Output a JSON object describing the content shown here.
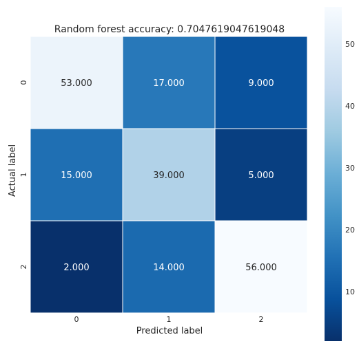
{
  "chart_data": {
    "type": "heatmap",
    "title": "Random forest accuracy: 0.7047619047619048",
    "xlabel": "Predicted label",
    "ylabel": "Actual label",
    "x_categories": [
      "0",
      "1",
      "2"
    ],
    "y_categories": [
      "0",
      "1",
      "2"
    ],
    "values": [
      [
        53,
        17,
        9
      ],
      [
        15,
        39,
        5
      ],
      [
        2,
        14,
        56
      ]
    ],
    "cell_labels": [
      [
        "53.000",
        "17.000",
        "9.000"
      ],
      [
        "15.000",
        "39.000",
        "5.000"
      ],
      [
        "2.000",
        "14.000",
        "56.000"
      ]
    ],
    "colormap": "Blues_r",
    "vmin": 2,
    "vmax": 56,
    "colorbar_ticks": [
      "10",
      "20",
      "30",
      "40",
      "50"
    ],
    "colorbar_tick_values": [
      10,
      20,
      30,
      40,
      50
    ],
    "grid": true,
    "legend": "colorbar-right"
  }
}
